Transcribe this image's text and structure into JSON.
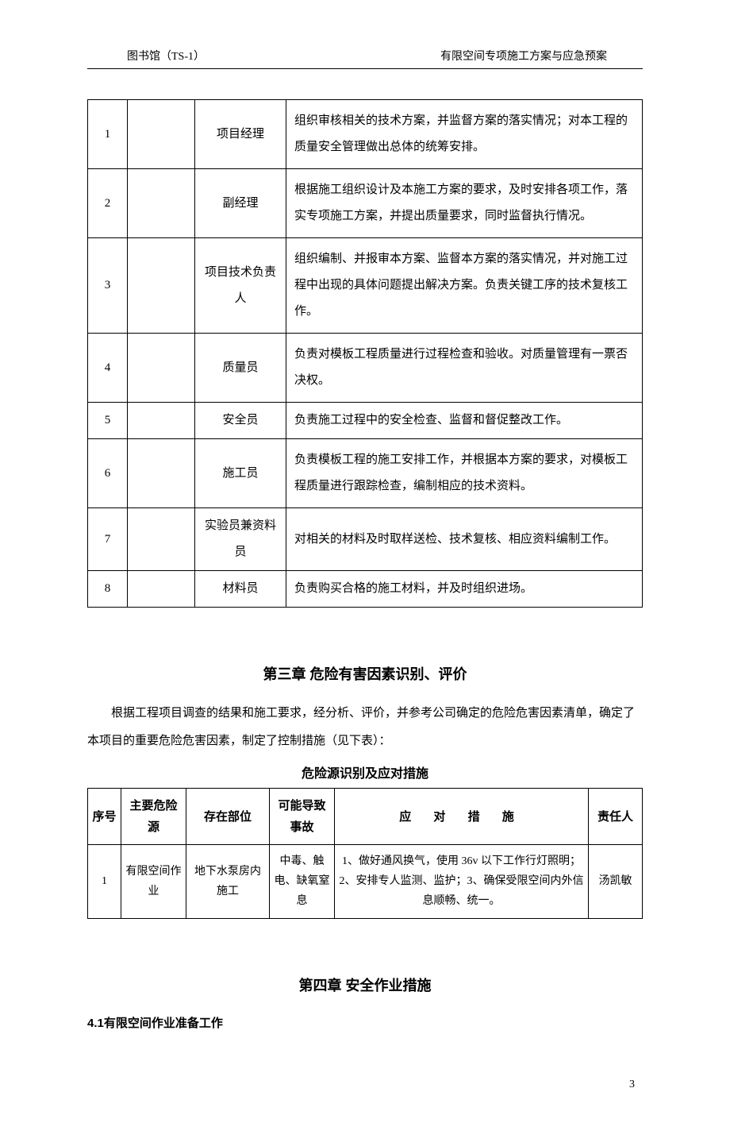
{
  "header": {
    "left": "图书馆（TS-1）",
    "right": "有限空间专项施工方案与应急预案"
  },
  "table1": {
    "rows": [
      {
        "num": "1",
        "role": "项目经理",
        "desc": "组织审核相关的技术方案，并监督方案的落实情况；对本工程的质量安全管理做出总体的统筹安排。",
        "short": false
      },
      {
        "num": "2",
        "role": "副经理",
        "desc": "根据施工组织设计及本施工方案的要求，及时安排各项工作，落实专项施工方案，并提出质量要求，同时监督执行情况。",
        "short": false
      },
      {
        "num": "3",
        "role": "项目技术负责人",
        "desc": "组织编制、并报审本方案、监督本方案的落实情况，并对施工过程中出现的具体问题提出解决方案。负责关键工序的技术复核工作。",
        "short": false
      },
      {
        "num": "4",
        "role": "质量员",
        "desc": "负责对模板工程质量进行过程检查和验收。对质量管理有一票否决权。",
        "short": false
      },
      {
        "num": "5",
        "role": "安全员",
        "desc": "负责施工过程中的安全检查、监督和督促整改工作。",
        "short": true
      },
      {
        "num": "6",
        "role": "施工员",
        "desc": "负责模板工程的施工安排工作，并根据本方案的要求，对模板工程质量进行跟踪检查，编制相应的技术资料。",
        "short": false
      },
      {
        "num": "7",
        "role": "实验员兼资料员",
        "desc": "对相关的材料及时取样送检、技术复核、相应资料编制工作。",
        "short": true
      },
      {
        "num": "8",
        "role": "材料员",
        "desc": "负责购买合格的施工材料，并及时组织进场。",
        "short": true
      }
    ]
  },
  "chapter3": {
    "heading": "第三章 危险有害因素识别、评价",
    "paragraph": "根据工程项目调查的结果和施工要求，经分析、评价，并参考公司确定的危险危害因素清单，确定了本项目的重要危险危害因素，制定了控制措施（见下表）：",
    "subheading": "危险源识别及应对措施"
  },
  "table2": {
    "headers": {
      "num": "序号",
      "hazard": "主要危险源",
      "location": "存在部位",
      "accident": "可能导致事故",
      "measure": "应 对 措 施",
      "person": "责任人"
    },
    "rows": [
      {
        "num": "1",
        "hazard": "有限空间作业",
        "location": "地下水泵房内施工",
        "accident": "中毒、触电、缺氧窒息",
        "measure": "1、做好通风换气，使用 36v 以下工作行灯照明；2、安排专人监测、监护；3、确保受限空间内外信息顺畅、统一。",
        "person": "汤凯敏"
      }
    ]
  },
  "chapter4": {
    "heading": "第四章 安全作业措施",
    "section": "4.1有限空间作业准备工作"
  },
  "pageNumber": "3"
}
